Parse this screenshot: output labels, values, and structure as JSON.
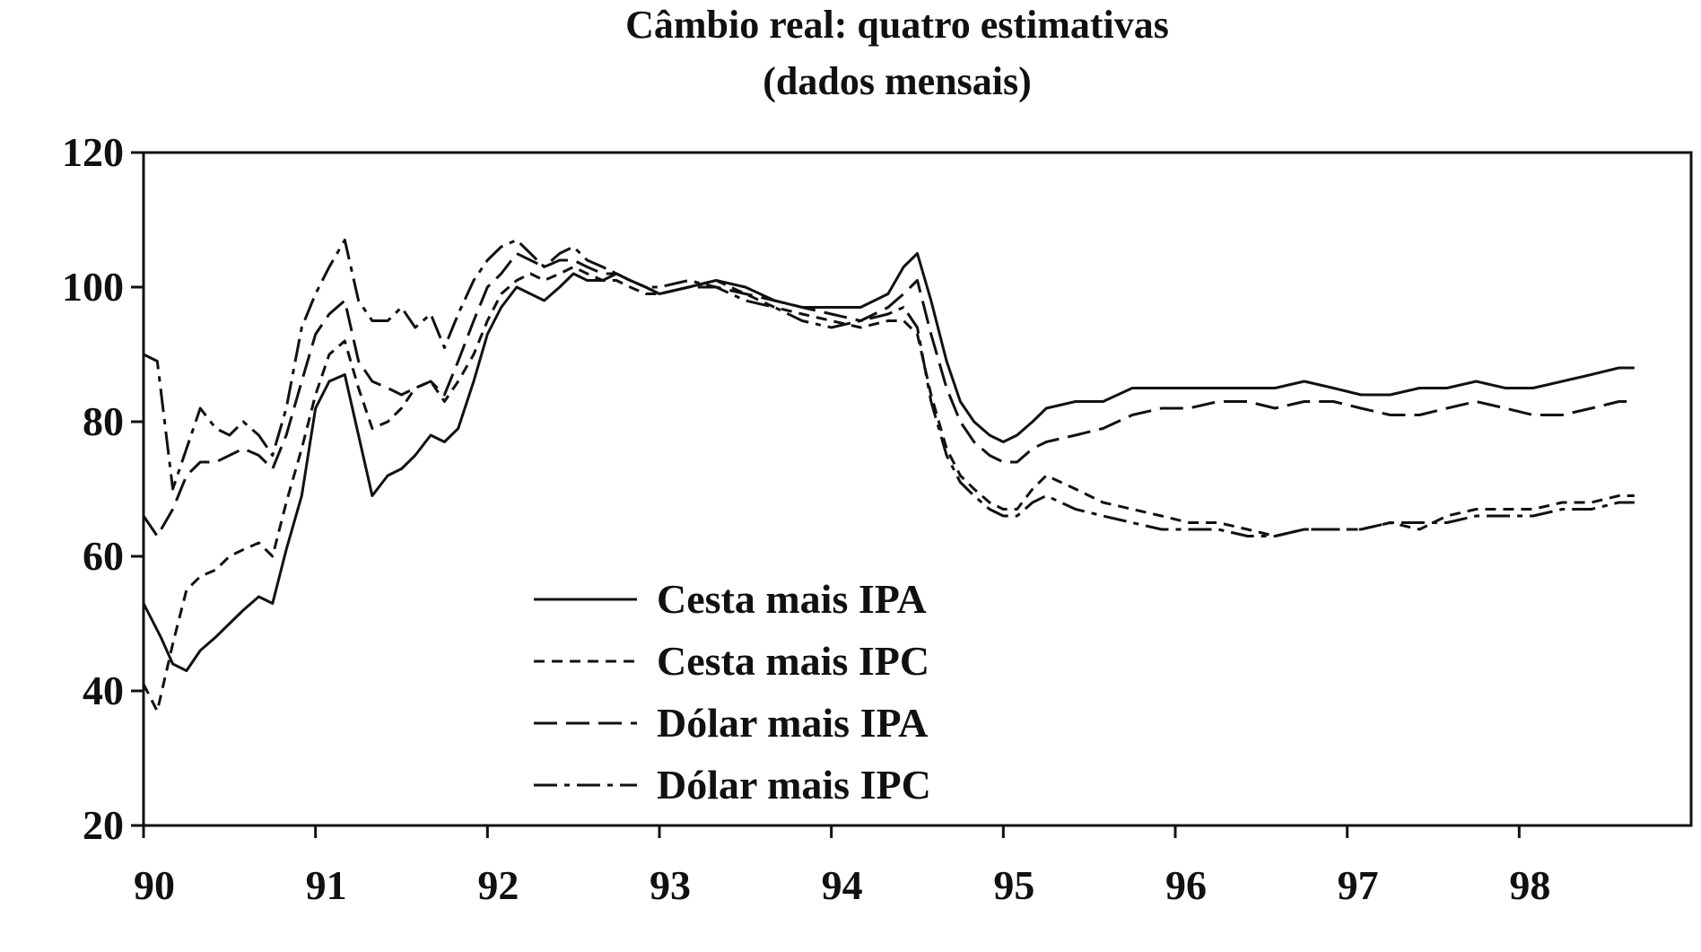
{
  "chart_data": {
    "type": "line",
    "title": "Câmbio real: quatro estimativas",
    "subtitle": "(dados mensais)",
    "xlabel": "",
    "ylabel": "",
    "xlim": [
      90,
      99
    ],
    "ylim": [
      20,
      120
    ],
    "y_ticks": [
      20,
      40,
      60,
      80,
      100,
      120
    ],
    "x_ticks": [
      90,
      91,
      92,
      93,
      94,
      95,
      96,
      97,
      98
    ],
    "x_tick_labels": [
      "90",
      "91",
      "92",
      "93",
      "94",
      "95",
      "96",
      "97",
      "98"
    ],
    "grid": false,
    "legend_position": "lower-center",
    "colors": {
      "line": "#111111",
      "background": "#ffffff"
    },
    "series": [
      {
        "name": "Cesta mais IPA",
        "style": "solid",
        "points": [
          [
            90.0,
            53
          ],
          [
            90.1,
            48
          ],
          [
            90.17,
            44
          ],
          [
            90.25,
            43
          ],
          [
            90.33,
            46
          ],
          [
            90.42,
            48
          ],
          [
            90.5,
            50
          ],
          [
            90.58,
            52
          ],
          [
            90.67,
            54
          ],
          [
            90.75,
            53
          ],
          [
            90.83,
            61
          ],
          [
            90.92,
            69
          ],
          [
            91.0,
            82
          ],
          [
            91.08,
            86
          ],
          [
            91.17,
            87
          ],
          [
            91.25,
            78
          ],
          [
            91.33,
            69
          ],
          [
            91.42,
            72
          ],
          [
            91.5,
            73
          ],
          [
            91.58,
            75
          ],
          [
            91.67,
            78
          ],
          [
            91.75,
            77
          ],
          [
            91.83,
            79
          ],
          [
            91.92,
            86
          ],
          [
            92.0,
            93
          ],
          [
            92.08,
            97
          ],
          [
            92.17,
            100
          ],
          [
            92.25,
            99
          ],
          [
            92.33,
            98
          ],
          [
            92.42,
            100
          ],
          [
            92.5,
            102
          ],
          [
            92.58,
            101
          ],
          [
            92.67,
            101
          ],
          [
            92.75,
            102
          ],
          [
            92.83,
            101
          ],
          [
            92.92,
            100
          ],
          [
            93.0,
            99
          ],
          [
            93.17,
            100
          ],
          [
            93.33,
            101
          ],
          [
            93.5,
            100
          ],
          [
            93.67,
            98
          ],
          [
            93.83,
            97
          ],
          [
            94.0,
            97
          ],
          [
            94.17,
            97
          ],
          [
            94.33,
            99
          ],
          [
            94.42,
            103
          ],
          [
            94.5,
            105
          ],
          [
            94.58,
            98
          ],
          [
            94.67,
            89
          ],
          [
            94.75,
            83
          ],
          [
            94.83,
            80
          ],
          [
            94.92,
            78
          ],
          [
            95.0,
            77
          ],
          [
            95.08,
            78
          ],
          [
            95.17,
            80
          ],
          [
            95.25,
            82
          ],
          [
            95.42,
            83
          ],
          [
            95.58,
            83
          ],
          [
            95.75,
            85
          ],
          [
            95.92,
            85
          ],
          [
            96.08,
            85
          ],
          [
            96.25,
            85
          ],
          [
            96.42,
            85
          ],
          [
            96.58,
            85
          ],
          [
            96.75,
            86
          ],
          [
            96.92,
            85
          ],
          [
            97.08,
            84
          ],
          [
            97.25,
            84
          ],
          [
            97.42,
            85
          ],
          [
            97.58,
            85
          ],
          [
            97.75,
            86
          ],
          [
            97.92,
            85
          ],
          [
            98.08,
            85
          ],
          [
            98.25,
            86
          ],
          [
            98.42,
            87
          ],
          [
            98.58,
            88
          ],
          [
            98.67,
            88
          ]
        ]
      },
      {
        "name": "Cesta mais IPC",
        "style": "dash-short",
        "points": [
          [
            90.0,
            41
          ],
          [
            90.08,
            37
          ],
          [
            90.17,
            47
          ],
          [
            90.25,
            55
          ],
          [
            90.33,
            57
          ],
          [
            90.42,
            58
          ],
          [
            90.5,
            60
          ],
          [
            90.58,
            61
          ],
          [
            90.67,
            62
          ],
          [
            90.75,
            60
          ],
          [
            90.83,
            68
          ],
          [
            90.92,
            76
          ],
          [
            91.0,
            84
          ],
          [
            91.08,
            90
          ],
          [
            91.17,
            92
          ],
          [
            91.25,
            85
          ],
          [
            91.33,
            79
          ],
          [
            91.42,
            80
          ],
          [
            91.5,
            82
          ],
          [
            91.58,
            85
          ],
          [
            91.67,
            86
          ],
          [
            91.75,
            83
          ],
          [
            91.83,
            86
          ],
          [
            91.92,
            90
          ],
          [
            92.0,
            95
          ],
          [
            92.08,
            99
          ],
          [
            92.17,
            101
          ],
          [
            92.25,
            102
          ],
          [
            92.33,
            101
          ],
          [
            92.42,
            102
          ],
          [
            92.5,
            103
          ],
          [
            92.58,
            102
          ],
          [
            92.67,
            101
          ],
          [
            92.75,
            101
          ],
          [
            92.83,
            100
          ],
          [
            92.92,
            99
          ],
          [
            93.0,
            99
          ],
          [
            93.17,
            100
          ],
          [
            93.33,
            101
          ],
          [
            93.5,
            99
          ],
          [
            93.67,
            97
          ],
          [
            93.83,
            96
          ],
          [
            94.0,
            95
          ],
          [
            94.17,
            94
          ],
          [
            94.33,
            95
          ],
          [
            94.42,
            95
          ],
          [
            94.5,
            93
          ],
          [
            94.58,
            84
          ],
          [
            94.67,
            76
          ],
          [
            94.75,
            72
          ],
          [
            94.83,
            70
          ],
          [
            94.92,
            68
          ],
          [
            95.0,
            67
          ],
          [
            95.08,
            67
          ],
          [
            95.17,
            70
          ],
          [
            95.25,
            72
          ],
          [
            95.42,
            70
          ],
          [
            95.58,
            68
          ],
          [
            95.75,
            67
          ],
          [
            95.92,
            66
          ],
          [
            96.08,
            65
          ],
          [
            96.25,
            65
          ],
          [
            96.42,
            64
          ],
          [
            96.58,
            63
          ],
          [
            96.75,
            64
          ],
          [
            96.92,
            64
          ],
          [
            97.08,
            64
          ],
          [
            97.25,
            65
          ],
          [
            97.42,
            64
          ],
          [
            97.58,
            66
          ],
          [
            97.75,
            67
          ],
          [
            97.92,
            67
          ],
          [
            98.08,
            67
          ],
          [
            98.25,
            68
          ],
          [
            98.42,
            68
          ],
          [
            98.58,
            69
          ],
          [
            98.67,
            69
          ]
        ]
      },
      {
        "name": "Dólar mais IPA",
        "style": "dash-long",
        "points": [
          [
            90.0,
            66
          ],
          [
            90.08,
            63
          ],
          [
            90.17,
            67
          ],
          [
            90.25,
            72
          ],
          [
            90.33,
            74
          ],
          [
            90.42,
            74
          ],
          [
            90.5,
            75
          ],
          [
            90.58,
            76
          ],
          [
            90.67,
            75
          ],
          [
            90.75,
            73
          ],
          [
            90.83,
            78
          ],
          [
            90.92,
            86
          ],
          [
            91.0,
            93
          ],
          [
            91.08,
            96
          ],
          [
            91.17,
            98
          ],
          [
            91.25,
            89
          ],
          [
            91.33,
            86
          ],
          [
            91.42,
            85
          ],
          [
            91.5,
            84
          ],
          [
            91.58,
            85
          ],
          [
            91.67,
            86
          ],
          [
            91.75,
            84
          ],
          [
            91.83,
            89
          ],
          [
            91.92,
            95
          ],
          [
            92.0,
            100
          ],
          [
            92.08,
            102
          ],
          [
            92.17,
            105
          ],
          [
            92.25,
            104
          ],
          [
            92.33,
            103
          ],
          [
            92.42,
            104
          ],
          [
            92.5,
            104
          ],
          [
            92.58,
            103
          ],
          [
            92.67,
            102
          ],
          [
            92.75,
            102
          ],
          [
            92.83,
            101
          ],
          [
            92.92,
            100
          ],
          [
            93.0,
            99
          ],
          [
            93.17,
            100
          ],
          [
            93.33,
            100
          ],
          [
            93.5,
            99
          ],
          [
            93.67,
            98
          ],
          [
            93.83,
            97
          ],
          [
            94.0,
            96
          ],
          [
            94.17,
            95
          ],
          [
            94.33,
            97
          ],
          [
            94.42,
            99
          ],
          [
            94.5,
            101
          ],
          [
            94.58,
            93
          ],
          [
            94.67,
            85
          ],
          [
            94.75,
            80
          ],
          [
            94.83,
            77
          ],
          [
            94.92,
            75
          ],
          [
            95.0,
            74
          ],
          [
            95.08,
            74
          ],
          [
            95.17,
            76
          ],
          [
            95.25,
            77
          ],
          [
            95.42,
            78
          ],
          [
            95.58,
            79
          ],
          [
            95.75,
            81
          ],
          [
            95.92,
            82
          ],
          [
            96.08,
            82
          ],
          [
            96.25,
            83
          ],
          [
            96.42,
            83
          ],
          [
            96.58,
            82
          ],
          [
            96.75,
            83
          ],
          [
            96.92,
            83
          ],
          [
            97.08,
            82
          ],
          [
            97.25,
            81
          ],
          [
            97.42,
            81
          ],
          [
            97.58,
            82
          ],
          [
            97.75,
            83
          ],
          [
            97.92,
            82
          ],
          [
            98.08,
            81
          ],
          [
            98.25,
            81
          ],
          [
            98.42,
            82
          ],
          [
            98.58,
            83
          ],
          [
            98.67,
            83
          ]
        ]
      },
      {
        "name": "Dólar mais IPC",
        "style": "dash-dot",
        "points": [
          [
            90.0,
            90
          ],
          [
            90.08,
            89
          ],
          [
            90.17,
            70
          ],
          [
            90.25,
            76
          ],
          [
            90.33,
            82
          ],
          [
            90.42,
            79
          ],
          [
            90.5,
            78
          ],
          [
            90.58,
            80
          ],
          [
            90.67,
            78
          ],
          [
            90.75,
            75
          ],
          [
            90.83,
            82
          ],
          [
            90.92,
            94
          ],
          [
            91.0,
            99
          ],
          [
            91.08,
            103
          ],
          [
            91.17,
            107
          ],
          [
            91.25,
            98
          ],
          [
            91.33,
            95
          ],
          [
            91.42,
            95
          ],
          [
            91.5,
            97
          ],
          [
            91.58,
            94
          ],
          [
            91.67,
            96
          ],
          [
            91.75,
            91
          ],
          [
            91.83,
            96
          ],
          [
            91.92,
            101
          ],
          [
            92.0,
            104
          ],
          [
            92.08,
            106
          ],
          [
            92.17,
            107
          ],
          [
            92.25,
            105
          ],
          [
            92.33,
            103
          ],
          [
            92.42,
            105
          ],
          [
            92.5,
            106
          ],
          [
            92.58,
            104
          ],
          [
            92.67,
            103
          ],
          [
            92.75,
            102
          ],
          [
            92.83,
            101
          ],
          [
            92.92,
            100
          ],
          [
            93.0,
            100
          ],
          [
            93.17,
            101
          ],
          [
            93.33,
            100
          ],
          [
            93.5,
            98
          ],
          [
            93.67,
            97
          ],
          [
            93.83,
            95
          ],
          [
            94.0,
            94
          ],
          [
            94.17,
            95
          ],
          [
            94.33,
            96
          ],
          [
            94.42,
            97
          ],
          [
            94.5,
            94
          ],
          [
            94.58,
            83
          ],
          [
            94.67,
            75
          ],
          [
            94.75,
            71
          ],
          [
            94.83,
            69
          ],
          [
            94.92,
            67
          ],
          [
            95.0,
            66
          ],
          [
            95.08,
            66
          ],
          [
            95.17,
            68
          ],
          [
            95.25,
            69
          ],
          [
            95.42,
            67
          ],
          [
            95.58,
            66
          ],
          [
            95.75,
            65
          ],
          [
            95.92,
            64
          ],
          [
            96.08,
            64
          ],
          [
            96.25,
            64
          ],
          [
            96.42,
            63
          ],
          [
            96.58,
            63
          ],
          [
            96.75,
            64
          ],
          [
            96.92,
            64
          ],
          [
            97.08,
            64
          ],
          [
            97.25,
            65
          ],
          [
            97.42,
            65
          ],
          [
            97.58,
            65
          ],
          [
            97.75,
            66
          ],
          [
            97.92,
            66
          ],
          [
            98.08,
            66
          ],
          [
            98.25,
            67
          ],
          [
            98.42,
            67
          ],
          [
            98.58,
            68
          ],
          [
            98.67,
            68
          ]
        ]
      }
    ]
  }
}
